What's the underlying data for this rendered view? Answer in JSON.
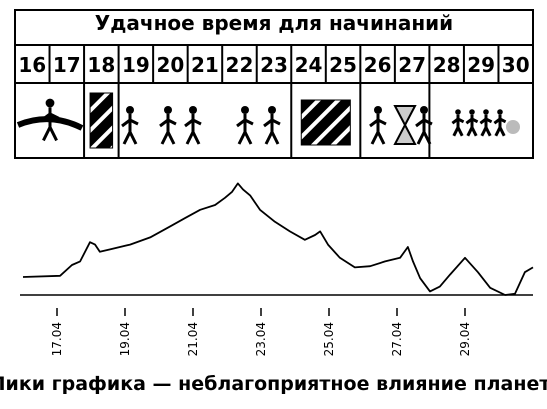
{
  "header": {
    "title": "Удачное время для начинаний"
  },
  "days": [
    16,
    17,
    18,
    19,
    20,
    21,
    22,
    23,
    24,
    25,
    26,
    27,
    28,
    29,
    30
  ],
  "chart_data": {
    "type": "line",
    "x": [
      16.0,
      17.09,
      17.44,
      17.68,
      17.97,
      18.12,
      18.26,
      18.56,
      19.15,
      19.74,
      20.32,
      20.76,
      21.21,
      21.65,
      21.94,
      22.15,
      22.32,
      22.47,
      22.68,
      22.97,
      23.41,
      23.85,
      24.29,
      24.59,
      24.74,
      24.97,
      25.32,
      25.76,
      26.21,
      26.65,
      27.09,
      27.32,
      27.47,
      27.68,
      27.97,
      28.26,
      28.56,
      29.0,
      29.38,
      29.74,
      30.18,
      30.47,
      30.76,
      31.0
    ],
    "y": [
      15,
      16,
      25,
      28,
      44,
      42,
      36,
      38,
      42,
      48,
      57,
      64,
      71,
      75,
      81,
      86,
      93,
      88,
      83,
      71,
      61,
      53,
      46,
      50,
      53,
      42,
      31,
      23,
      24,
      28,
      31,
      40,
      28,
      14,
      3,
      7,
      17,
      31,
      19,
      6,
      0,
      1,
      19,
      23
    ],
    "color": "#000000",
    "xlim": [
      16,
      31
    ],
    "ylim": [
      0,
      100
    ],
    "xticks": [
      {
        "value": 17,
        "label": "17.04"
      },
      {
        "value": 19,
        "label": "19.04"
      },
      {
        "value": 21,
        "label": "21.04"
      },
      {
        "value": 23,
        "label": "23.04"
      },
      {
        "value": 25,
        "label": "25.04"
      },
      {
        "value": 27,
        "label": "27.04"
      },
      {
        "value": 29,
        "label": "29.04"
      }
    ]
  },
  "footer": {
    "caption": "Пики графика — неблагоприятное влияние планет"
  }
}
